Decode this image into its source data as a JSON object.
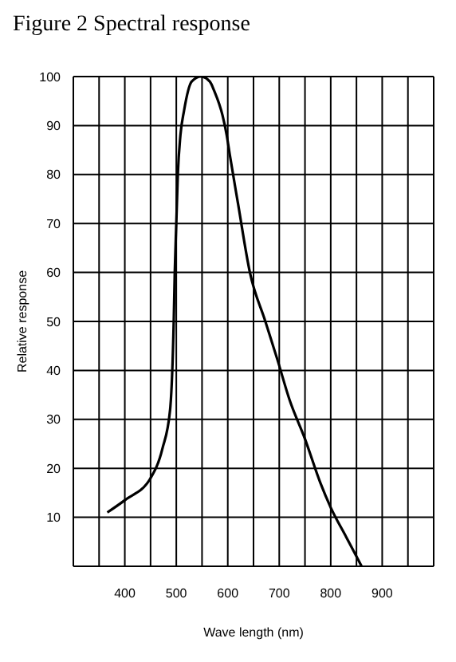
{
  "chart_data": {
    "type": "line",
    "title": "Figure 2  Spectral response",
    "xlabel": "Wave length (nm)",
    "ylabel": "Relative response",
    "x": [
      366,
      400,
      450,
      473,
      488,
      495,
      497,
      500,
      503,
      508,
      515,
      530,
      548,
      565,
      574,
      590,
      598,
      604,
      620,
      643,
      673,
      697,
      720,
      750,
      780,
      800,
      830,
      860
    ],
    "series": [
      {
        "color": "#000000",
        "values": [
          11,
          13.5,
          18,
          24,
          32,
          50,
          60,
          70,
          80,
          88,
          93,
          99,
          100,
          99,
          97,
          92,
          88,
          84,
          74,
          60,
          50,
          42,
          34,
          26,
          17,
          12,
          6,
          0
        ]
      }
    ],
    "xlim": [
      300,
      1000
    ],
    "xticks": [
      {
        "value": 300,
        "label": null
      },
      {
        "value": 350,
        "label": null
      },
      400,
      {
        "value": 450,
        "label": null
      },
      500,
      {
        "value": 550,
        "label": null
      },
      600,
      {
        "value": 650,
        "label": null
      },
      700,
      {
        "value": 750,
        "label": null
      },
      800,
      {
        "value": 850,
        "label": null
      },
      900,
      {
        "value": 950,
        "label": null
      },
      {
        "value": 1000,
        "label": null
      }
    ],
    "ylim": [
      0,
      100
    ],
    "yticks": [
      {
        "value": 0,
        "label": null
      },
      10,
      20,
      30,
      40,
      50,
      60,
      70,
      80,
      90,
      100
    ],
    "grid": true,
    "marker": "none",
    "line_style": "solid"
  }
}
